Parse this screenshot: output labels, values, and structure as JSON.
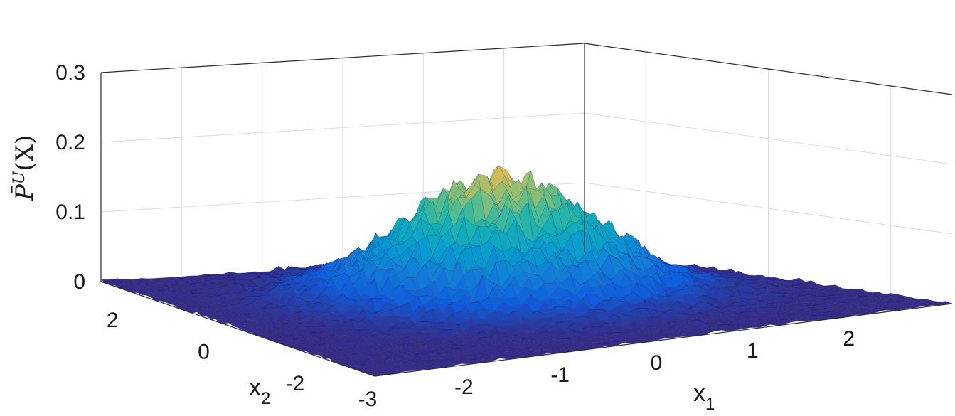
{
  "chart_data": {
    "type": "surface3d",
    "title": "",
    "xlabel": "x",
    "xlabel_sub": "1",
    "ylabel": "x",
    "ylabel_sub": "2",
    "zlabel": "P̄",
    "zlabel_sup": "U",
    "zlabel_arg": "(X)",
    "x_ticks": [
      "-3",
      "-2",
      "-1",
      "0",
      "1",
      "2"
    ],
    "y_ticks": [
      "-2",
      "0",
      "2"
    ],
    "z_ticks": [
      "0",
      "0.1",
      "0.2",
      "0.3"
    ],
    "xlim": [
      -3,
      3
    ],
    "ylim": [
      -3,
      3
    ],
    "zlim": [
      0,
      0.3
    ],
    "grid": true,
    "colormap": "parula",
    "surface": {
      "description_of_shape": "noisy bivariate Gaussian density centered near origin",
      "peak_value": 0.19,
      "peak_location": [
        0.2,
        0.4
      ],
      "spread_sigma": 0.95
    }
  }
}
